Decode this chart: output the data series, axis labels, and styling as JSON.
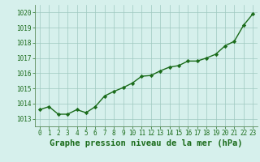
{
  "x": [
    0,
    1,
    2,
    3,
    4,
    5,
    6,
    7,
    8,
    9,
    10,
    11,
    12,
    13,
    14,
    15,
    16,
    17,
    18,
    19,
    20,
    21,
    22,
    23
  ],
  "y": [
    1013.6,
    1013.8,
    1013.3,
    1013.3,
    1013.6,
    1013.4,
    1013.8,
    1014.5,
    1014.8,
    1015.05,
    1015.35,
    1015.8,
    1015.85,
    1016.15,
    1016.4,
    1016.5,
    1016.8,
    1016.8,
    1017.0,
    1017.25,
    1017.8,
    1018.1,
    1019.15,
    1019.9
  ],
  "line_color": "#1a6b1a",
  "marker": "D",
  "marker_size": 2.2,
  "line_width": 1.0,
  "bg_color": "#d6f0ec",
  "grid_color": "#9ec8c0",
  "title": "Graphe pression niveau de la mer (hPa)",
  "title_color": "#1a6b1a",
  "title_fontsize": 7.5,
  "ylim": [
    1012.5,
    1020.5
  ],
  "xlim": [
    -0.5,
    23.5
  ],
  "yticks": [
    1013,
    1014,
    1015,
    1016,
    1017,
    1018,
    1019,
    1020
  ],
  "xtick_labels": [
    "0",
    "1",
    "2",
    "3",
    "4",
    "5",
    "6",
    "7",
    "8",
    "9",
    "10",
    "11",
    "12",
    "13",
    "14",
    "15",
    "16",
    "17",
    "18",
    "19",
    "20",
    "21",
    "22",
    "23"
  ],
  "tick_color": "#1a6b1a",
  "tick_fontsize": 5.5,
  "axis_color": "#5a8a5a"
}
